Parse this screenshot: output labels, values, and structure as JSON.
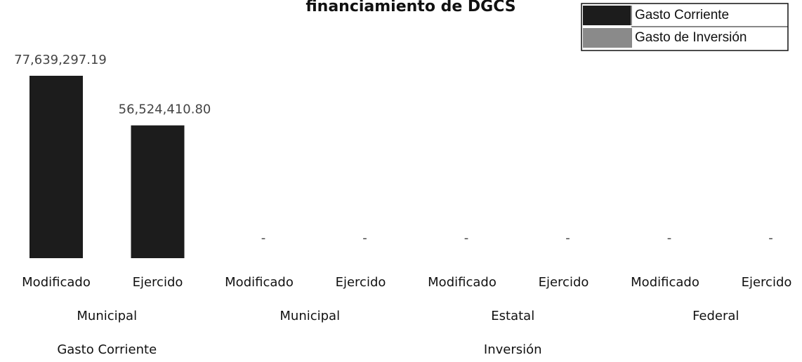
{
  "chart_data": {
    "type": "bar",
    "title": "financiamiento de DGCS",
    "category_groups": [
      {
        "name": "Gasto Corriente",
        "groups": [
          {
            "name": "Municipal",
            "categories": [
              "Modificado",
              "Ejercido"
            ]
          }
        ]
      },
      {
        "name": "Inversión",
        "groups": [
          {
            "name": "Municipal",
            "categories": [
              "Modificado",
              "Ejercido"
            ]
          },
          {
            "name": "Estatal",
            "categories": [
              "Modificado",
              "Ejercido"
            ]
          },
          {
            "name": "Federal",
            "categories": [
              "Modificado",
              "Ejercido"
            ]
          }
        ]
      }
    ],
    "series": [
      {
        "name": "Gasto Corriente",
        "color": "#1c1c1c",
        "values": [
          77639297.19,
          56524410.8,
          null,
          null,
          null,
          null,
          null,
          null
        ],
        "value_labels": [
          "77,639,297.19",
          "56,524,410.80",
          null,
          null,
          null,
          null,
          null,
          null
        ]
      },
      {
        "name": "Gasto de Inversión",
        "color": "#8a8a8a",
        "values": [
          null,
          null,
          0,
          0,
          0,
          0,
          0,
          0
        ],
        "value_labels": [
          null,
          null,
          "-",
          "-",
          "-",
          "-",
          "-",
          "-"
        ]
      }
    ],
    "legend": "top-right"
  }
}
